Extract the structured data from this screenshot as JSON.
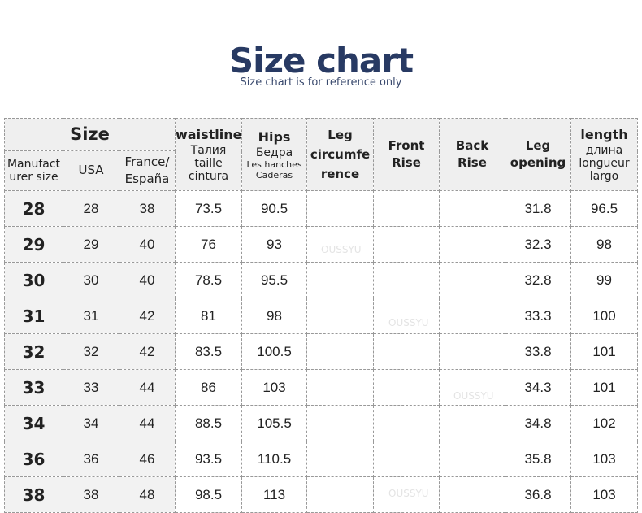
{
  "title": "Size chart",
  "subtitle": "Size chart is for reference only",
  "watermark": "OUSSYU",
  "header": {
    "size": "Size",
    "manufacturer": "Manufact urer size",
    "usa": "USA",
    "france": "France/ España",
    "waist": {
      "main": "waistline",
      "l1": "Талия",
      "l2": "taille",
      "l3": "cintura"
    },
    "hips": {
      "main": "Hips",
      "l1": "Бедра",
      "l2": "Les hanches",
      "l3": "Caderas"
    },
    "leg_circ": "Leg circumfe rence",
    "front_rise": "Front Rise",
    "back_rise": "Back Rise",
    "leg_opening": "Leg opening",
    "length": {
      "main": "length",
      "l1": "длина",
      "l2": "longueur",
      "l3": "largo"
    }
  },
  "rows": [
    [
      "28",
      "28",
      "38",
      "73.5",
      "90.5",
      "",
      "",
      "",
      "31.8",
      "96.5"
    ],
    [
      "29",
      "29",
      "40",
      "76",
      "93",
      "",
      "",
      "",
      "32.3",
      "98"
    ],
    [
      "30",
      "30",
      "40",
      "78.5",
      "95.5",
      "",
      "",
      "",
      "32.8",
      "99"
    ],
    [
      "31",
      "31",
      "42",
      "81",
      "98",
      "",
      "",
      "",
      "33.3",
      "100"
    ],
    [
      "32",
      "32",
      "42",
      "83.5",
      "100.5",
      "",
      "",
      "",
      "33.8",
      "101"
    ],
    [
      "33",
      "33",
      "44",
      "86",
      "103",
      "",
      "",
      "",
      "34.3",
      "101"
    ],
    [
      "34",
      "34",
      "44",
      "88.5",
      "105.5",
      "",
      "",
      "",
      "34.8",
      "102"
    ],
    [
      "36",
      "36",
      "46",
      "93.5",
      "110.5",
      "",
      "",
      "",
      "35.8",
      "103"
    ],
    [
      "38",
      "38",
      "48",
      "98.5",
      "113",
      "",
      "",
      "",
      "36.8",
      "103"
    ]
  ]
}
